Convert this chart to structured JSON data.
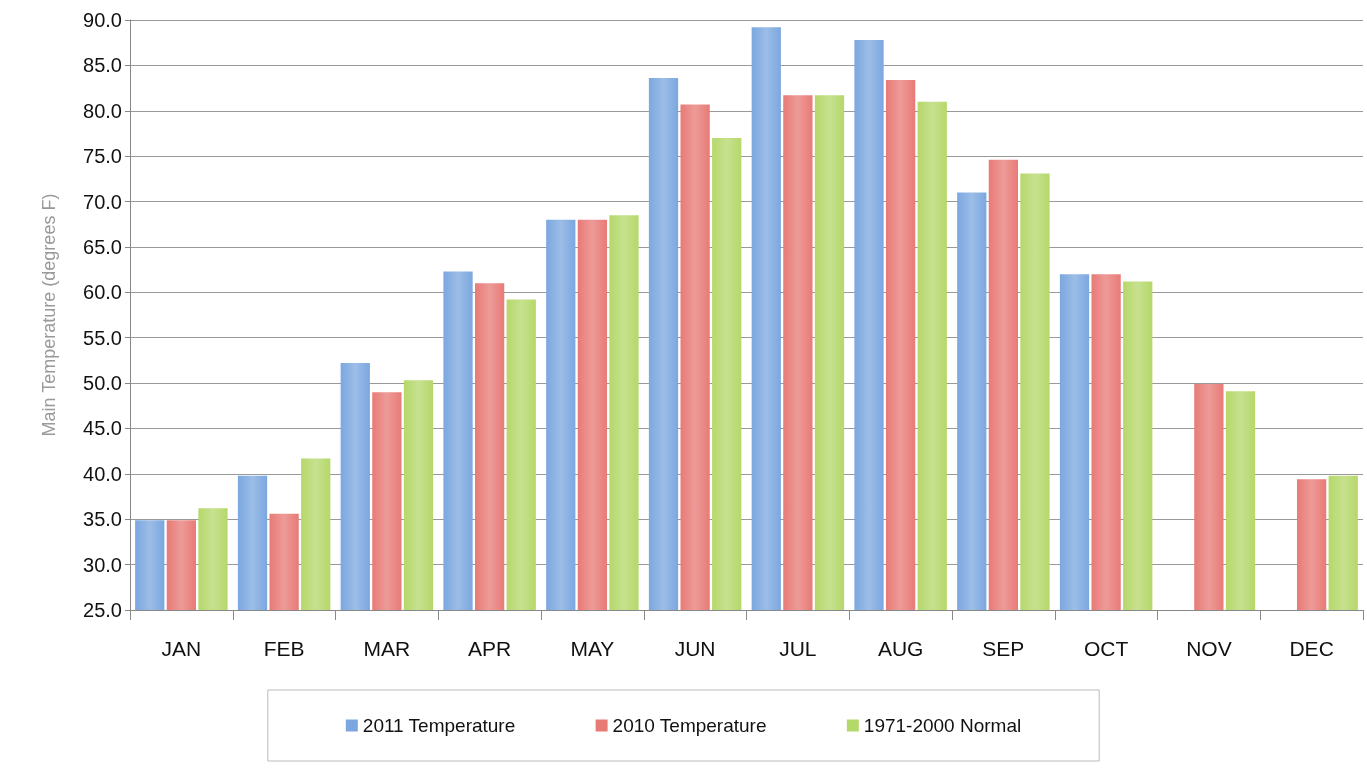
{
  "chart_data": {
    "type": "bar",
    "ylabel": "Main Temperature (degrees F)",
    "categories": [
      "JAN",
      "FEB",
      "MAR",
      "APR",
      "MAY",
      "JUN",
      "JUL",
      "AUG",
      "SEP",
      "OCT",
      "NOV",
      "DEC"
    ],
    "series": [
      {
        "name": "2011 Temperature",
        "color": "#7ba7e0",
        "values": [
          34.9,
          39.8,
          52.2,
          62.3,
          68.0,
          83.6,
          89.2,
          87.8,
          71.0,
          62.0,
          null,
          null
        ]
      },
      {
        "name": "2010 Temperature",
        "color": "#e87a76",
        "values": [
          34.9,
          35.6,
          49.0,
          61.0,
          68.0,
          80.7,
          81.7,
          83.4,
          74.6,
          62.0,
          49.9,
          39.4
        ]
      },
      {
        "name": "1971-2000 Normal",
        "color": "#b5d86a",
        "values": [
          36.2,
          41.7,
          50.3,
          59.2,
          68.5,
          77.0,
          81.7,
          81.0,
          73.1,
          61.2,
          49.1,
          39.8
        ]
      }
    ],
    "ylim": [
      25,
      90
    ],
    "yticks": [
      {
        "value": 25,
        "label": "25.0"
      },
      {
        "value": 30,
        "label": "30.0"
      },
      {
        "value": 35,
        "label": "35.0"
      },
      {
        "value": 40,
        "label": "40.0"
      },
      {
        "value": 45,
        "label": "45.0"
      },
      {
        "value": 50,
        "label": "50.0"
      },
      {
        "value": 55,
        "label": "55.0"
      },
      {
        "value": 60,
        "label": "60.0"
      },
      {
        "value": 65,
        "label": "65.0"
      },
      {
        "value": 70,
        "label": "70.0"
      },
      {
        "value": 75,
        "label": "75.0"
      },
      {
        "value": 80,
        "label": "80.0"
      },
      {
        "value": 85,
        "label": "85.0"
      },
      {
        "value": 90,
        "label": "90.0"
      }
    ],
    "grid": "y",
    "legend": "bottom"
  }
}
